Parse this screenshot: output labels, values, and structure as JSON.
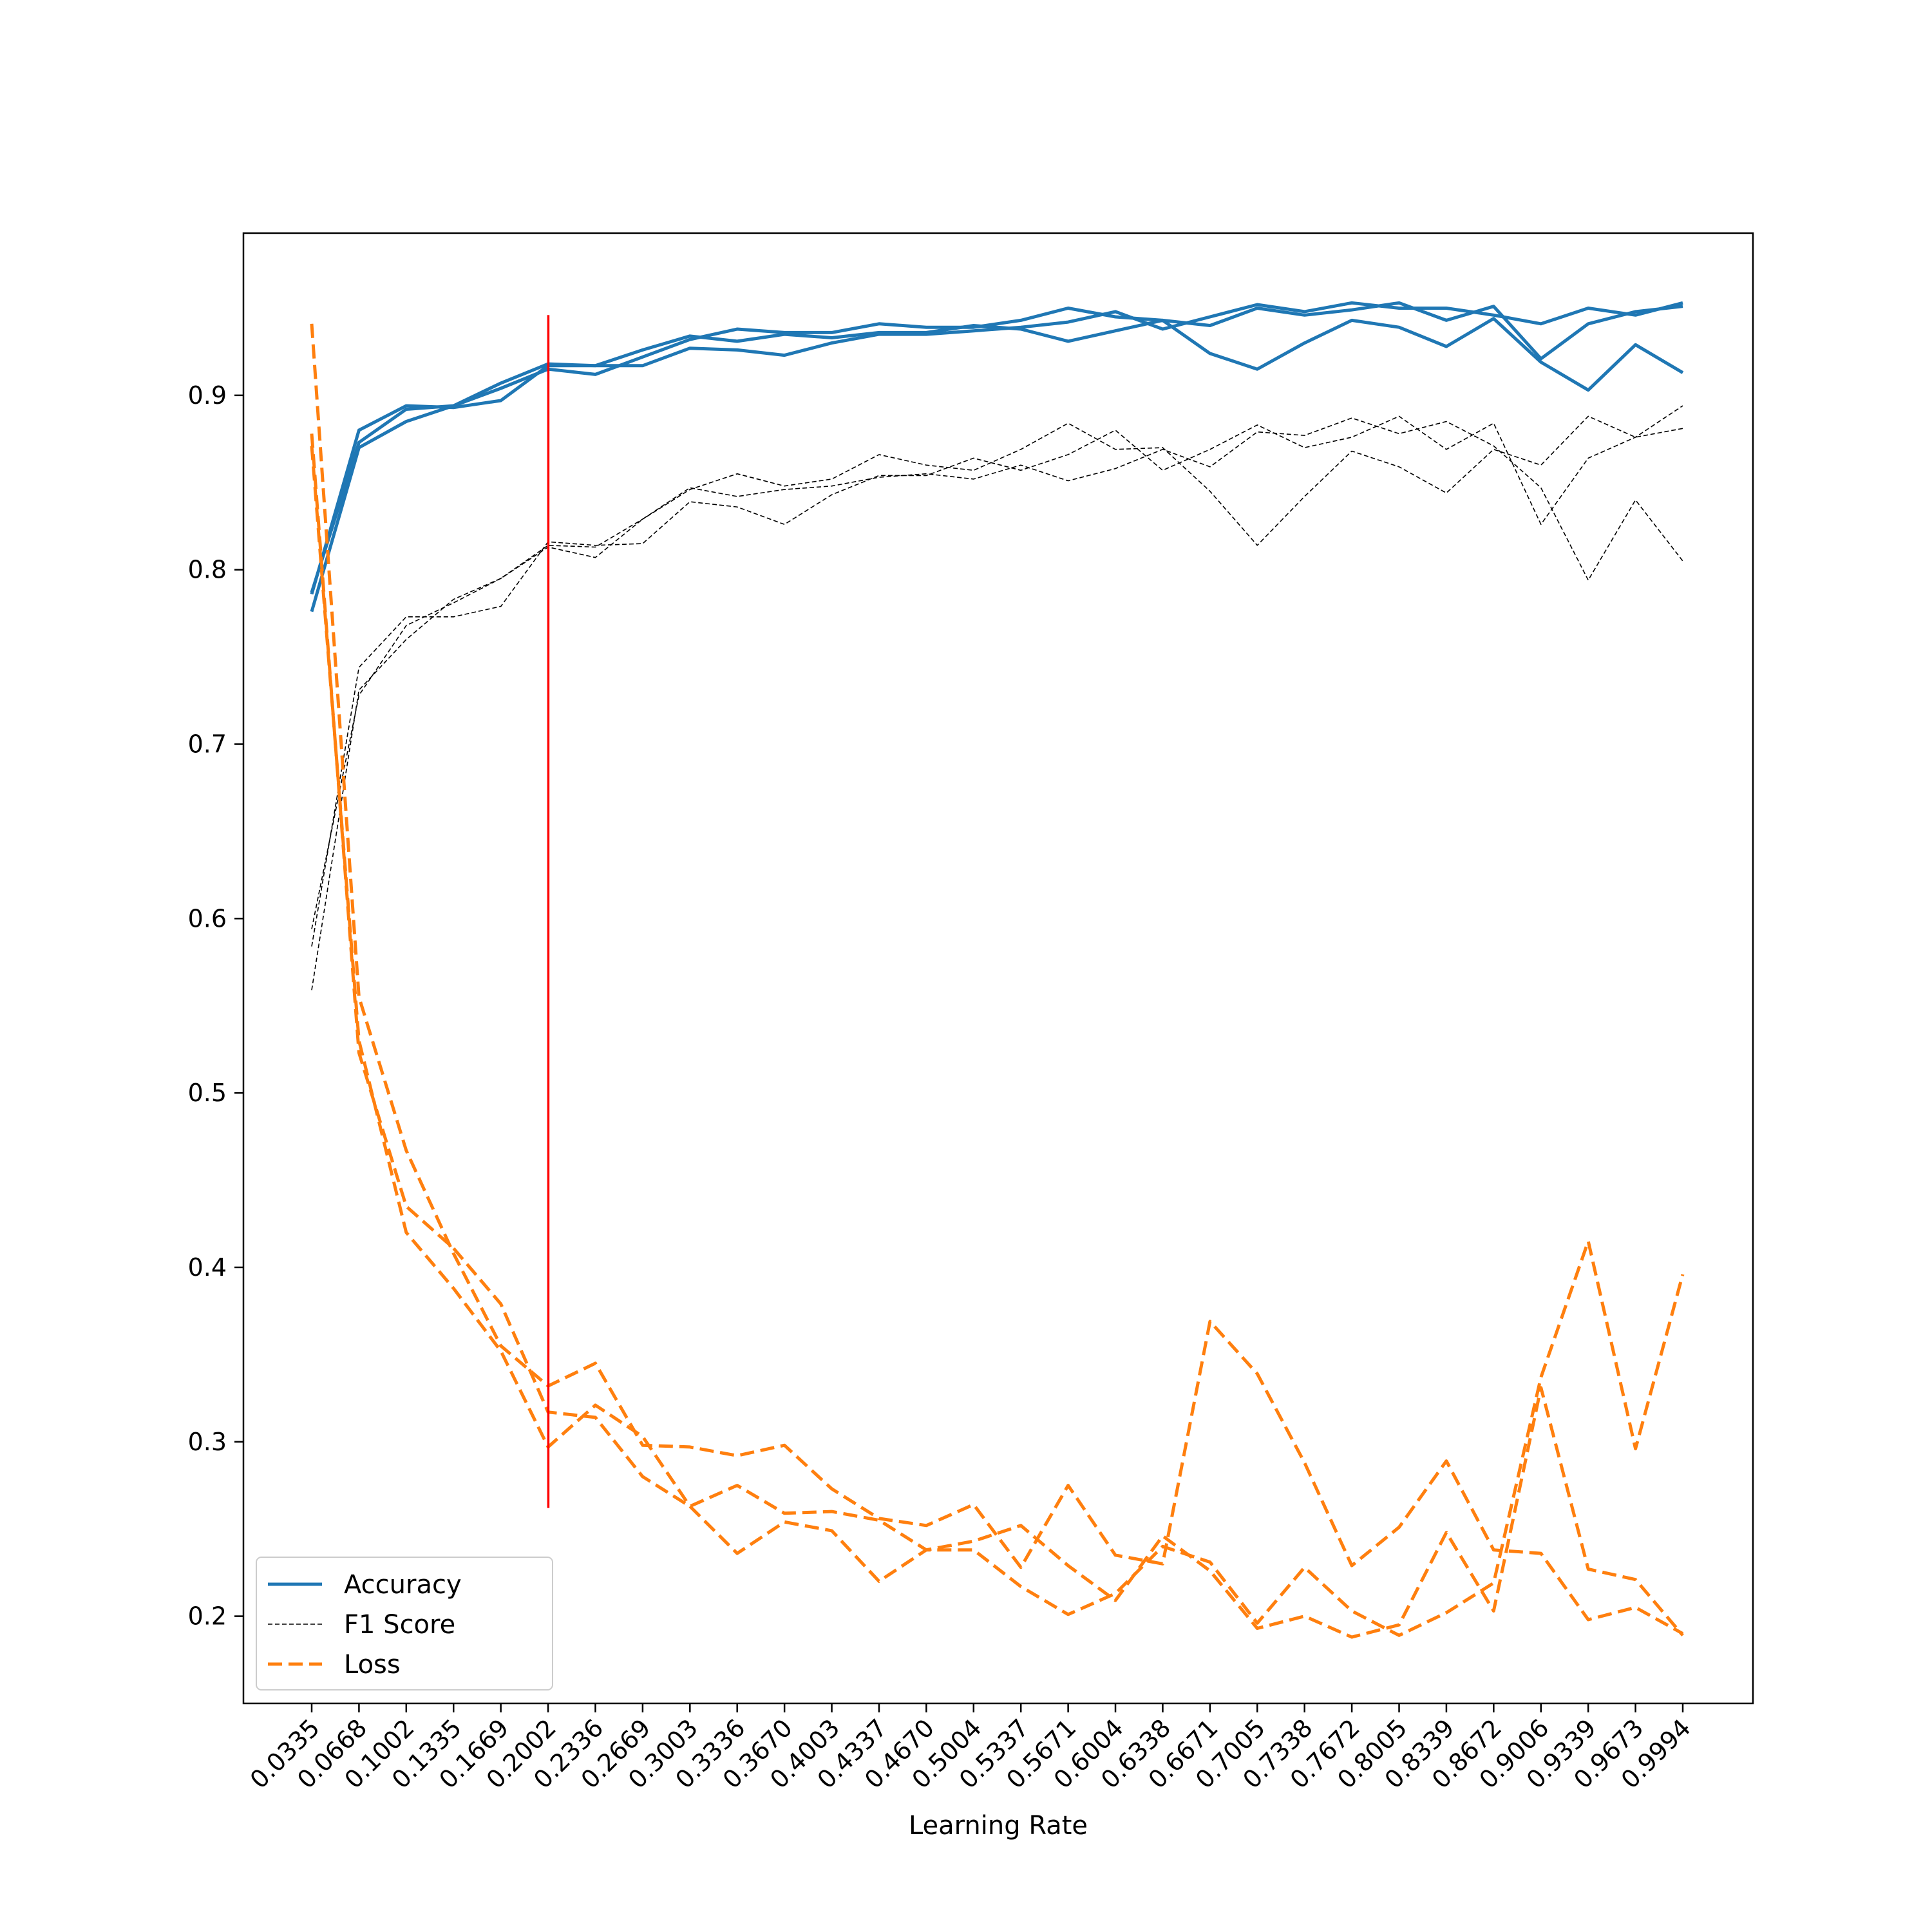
{
  "chart_data": {
    "type": "line",
    "xlabel": "Learning Rate",
    "ylabel": "",
    "title": "",
    "ylim": [
      0.15,
      0.993
    ],
    "y_ticks": [
      0.2,
      0.3,
      0.4,
      0.5,
      0.6,
      0.7,
      0.8,
      0.9
    ],
    "y_tick_labels": [
      "0.2",
      "0.3",
      "0.4",
      "0.5",
      "0.6",
      "0.7",
      "0.8",
      "0.9"
    ],
    "categories": [
      "0.0335",
      "0.0668",
      "0.1002",
      "0.1335",
      "0.1669",
      "0.2002",
      "0.2336",
      "0.2669",
      "0.3003",
      "0.3336",
      "0.3670",
      "0.4003",
      "0.4337",
      "0.4670",
      "0.5004",
      "0.5337",
      "0.5671",
      "0.6004",
      "0.6338",
      "0.6671",
      "0.7005",
      "0.7338",
      "0.7672",
      "0.8005",
      "0.8339",
      "0.8672",
      "0.9006",
      "0.9339",
      "0.9673",
      "0.9994"
    ],
    "x_numeric": [
      0.0335,
      0.0668,
      0.1002,
      0.1335,
      0.1669,
      0.2002,
      0.2336,
      0.2669,
      0.3003,
      0.3336,
      0.367,
      0.4003,
      0.4337,
      0.467,
      0.5004,
      0.5337,
      0.5671,
      0.6004,
      0.6338,
      0.6671,
      0.7005,
      0.7338,
      0.7672,
      0.8005,
      0.8339,
      0.8672,
      0.9006,
      0.9339,
      0.9673,
      0.9994
    ],
    "grid": false,
    "legend_position": "lower-left",
    "legend": [
      {
        "label": "Accuracy",
        "color": "#1f77b4",
        "style": "solid"
      },
      {
        "label": "F1 Score",
        "color": "#000000",
        "style": "dashed-thin"
      },
      {
        "label": "Loss",
        "color": "#ff7f0e",
        "style": "dashed"
      }
    ],
    "vertical_line": {
      "x": 0.2002,
      "y_range": [
        0.262,
        0.946
      ],
      "color": "#ff0000"
    },
    "series": [
      {
        "group": "Accuracy",
        "color": "#1f77b4",
        "style": "solid",
        "values": [
          0.776,
          0.87,
          0.885,
          0.894,
          0.904,
          0.915,
          0.912,
          0.922,
          0.932,
          0.938,
          0.936,
          0.936,
          0.941,
          0.939,
          0.939,
          0.943,
          0.95,
          0.945,
          0.943,
          0.94,
          0.95,
          0.946,
          0.949,
          0.953,
          0.943,
          0.951,
          0.921,
          0.941,
          0.948,
          0.951
        ]
      },
      {
        "group": "Accuracy",
        "color": "#1f77b4",
        "style": "solid",
        "values": [
          0.787,
          0.873,
          0.892,
          0.894,
          0.907,
          0.918,
          0.917,
          0.926,
          0.934,
          0.931,
          0.935,
          0.933,
          0.936,
          0.936,
          0.94,
          0.938,
          0.931,
          0.937,
          0.943,
          0.924,
          0.915,
          0.93,
          0.943,
          0.939,
          0.928,
          0.944,
          0.919,
          0.903,
          0.929,
          0.913
        ]
      },
      {
        "group": "Accuracy",
        "color": "#1f77b4",
        "style": "solid",
        "values": [
          0.786,
          0.88,
          0.894,
          0.893,
          0.897,
          0.917,
          0.917,
          0.917,
          0.927,
          0.926,
          0.923,
          0.93,
          0.935,
          0.935,
          0.937,
          0.939,
          0.942,
          0.948,
          0.938,
          0.945,
          0.952,
          0.948,
          0.953,
          0.95,
          0.95,
          0.946,
          0.941,
          0.95,
          0.946,
          0.953
        ]
      },
      {
        "group": "F1 Score",
        "color": "#000000",
        "style": "dashed-thin",
        "values": [
          0.559,
          0.731,
          0.76,
          0.783,
          0.795,
          0.814,
          0.813,
          0.829,
          0.846,
          0.855,
          0.848,
          0.852,
          0.866,
          0.86,
          0.857,
          0.869,
          0.884,
          0.869,
          0.87,
          0.845,
          0.814,
          0.842,
          0.868,
          0.859,
          0.844,
          0.869,
          0.86,
          0.888,
          0.876,
          0.881
        ]
      },
      {
        "group": "F1 Score",
        "color": "#000000",
        "style": "dashed-thin",
        "values": [
          0.584,
          0.744,
          0.773,
          0.773,
          0.779,
          0.816,
          0.814,
          0.815,
          0.839,
          0.836,
          0.826,
          0.843,
          0.854,
          0.854,
          0.864,
          0.857,
          0.866,
          0.88,
          0.857,
          0.869,
          0.883,
          0.87,
          0.876,
          0.888,
          0.869,
          0.884,
          0.826,
          0.864,
          0.876,
          0.894
        ]
      },
      {
        "group": "F1 Score",
        "color": "#000000",
        "style": "dashed-thin",
        "values": [
          0.594,
          0.728,
          0.768,
          0.781,
          0.795,
          0.813,
          0.807,
          0.829,
          0.847,
          0.842,
          0.846,
          0.848,
          0.853,
          0.855,
          0.852,
          0.86,
          0.851,
          0.858,
          0.869,
          0.859,
          0.879,
          0.877,
          0.887,
          0.878,
          0.885,
          0.871,
          0.847,
          0.794,
          0.84,
          0.805
        ]
      },
      {
        "group": "Loss",
        "color": "#ff7f0e",
        "style": "dashed",
        "values": [
          0.941,
          0.555,
          0.467,
          0.408,
          0.355,
          0.332,
          0.345,
          0.298,
          0.297,
          0.292,
          0.298,
          0.273,
          0.256,
          0.252,
          0.264,
          0.228,
          0.275,
          0.235,
          0.23,
          0.369,
          0.339,
          0.288,
          0.229,
          0.251,
          0.289,
          0.238,
          0.236,
          0.198,
          0.205,
          0.19
        ]
      },
      {
        "group": "Loss",
        "color": "#ff7f0e",
        "style": "dashed",
        "values": [
          0.878,
          0.523,
          0.435,
          0.411,
          0.379,
          0.317,
          0.314,
          0.28,
          0.263,
          0.275,
          0.259,
          0.26,
          0.255,
          0.238,
          0.238,
          0.217,
          0.201,
          0.213,
          0.24,
          0.231,
          0.196,
          0.228,
          0.203,
          0.189,
          0.202,
          0.219,
          0.337,
          0.415,
          0.296,
          0.396
        ]
      },
      {
        "group": "Loss",
        "color": "#ff7f0e",
        "style": "dashed",
        "values": [
          0.871,
          0.53,
          0.42,
          0.388,
          0.352,
          0.297,
          0.321,
          0.303,
          0.263,
          0.236,
          0.254,
          0.249,
          0.22,
          0.238,
          0.243,
          0.252,
          0.229,
          0.209,
          0.246,
          0.226,
          0.193,
          0.2,
          0.188,
          0.195,
          0.248,
          0.203,
          0.331,
          0.227,
          0.221,
          0.189
        ]
      }
    ]
  }
}
